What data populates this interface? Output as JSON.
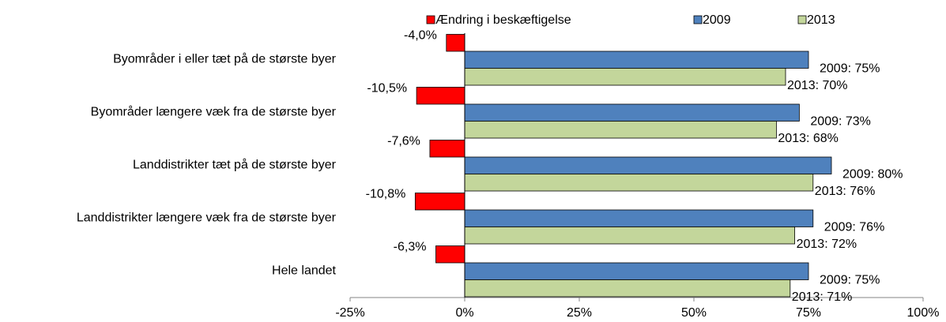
{
  "chart_data": {
    "type": "bar",
    "orientation": "horizontal",
    "categories": [
      "Byområder i eller tæt på de største byer",
      "Byområder længere væk fra de største byer",
      "Landdistrikter tæt på de største byer",
      "Landdistrikter længere væk fra de største byer",
      "Hele landet"
    ],
    "series": [
      {
        "name": "Ændring i beskæftigelse",
        "color": "#ff0000",
        "values": [
          -4.0,
          -10.5,
          -7.6,
          -10.8,
          -6.3
        ],
        "value_labels": [
          "-4,0%",
          "-10,5%",
          "-7,6%",
          "-10,8%",
          "-6,3%"
        ]
      },
      {
        "name": "2009",
        "color": "#4f81bd",
        "values": [
          75,
          73,
          80,
          76,
          75
        ],
        "value_labels": [
          "2009: 75%",
          "2009: 73%",
          "2009: 80%",
          "2009: 76%",
          "2009: 75%"
        ]
      },
      {
        "name": "2013",
        "color": "#c3d69b",
        "values": [
          70,
          68,
          76,
          72,
          71
        ],
        "value_labels": [
          "2013: 70%",
          "2013: 68%",
          "2013: 76%",
          "2013: 72%",
          "2013: 71%"
        ]
      }
    ],
    "xlim": [
      -25,
      100
    ],
    "xticks": [
      {
        "value": -25,
        "label": "-25%"
      },
      {
        "value": 0,
        "label": "0%"
      },
      {
        "value": 25,
        "label": "25%"
      },
      {
        "value": 50,
        "label": "50%"
      },
      {
        "value": 75,
        "label": "75%"
      },
      {
        "value": 100,
        "label": "100%"
      }
    ],
    "legend": "top",
    "grid": false
  }
}
